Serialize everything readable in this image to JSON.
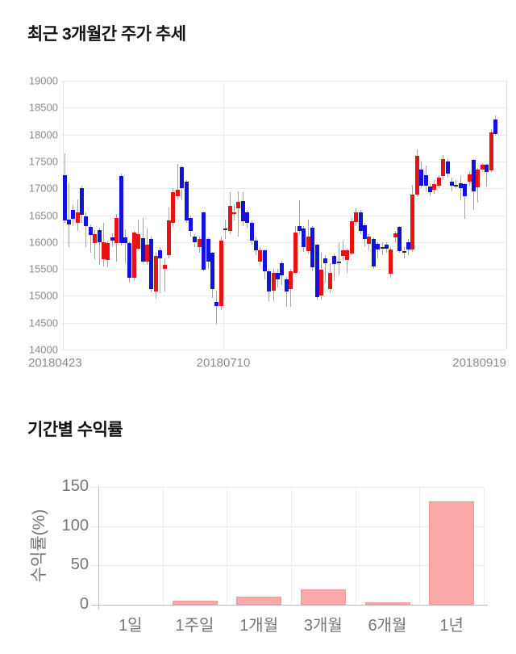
{
  "page": {
    "background": "#ffffff"
  },
  "chart_data": [
    {
      "type": "candlestick",
      "title": "최근 3개월간 주가 추세",
      "ylim": [
        14000,
        19000
      ],
      "y_ticks": [
        19000,
        18500,
        18000,
        17500,
        17000,
        16500,
        16000,
        15500,
        15000,
        14500,
        14000
      ],
      "x_tick_labels": [
        "20180423",
        "20180710",
        "20180919"
      ],
      "grid": true,
      "up_color": "#e81212",
      "down_color": "#1212e0",
      "doji_color": "#333333",
      "wick_color": "#a6a6a6",
      "candles_format": [
        "open",
        "close",
        "high",
        "low"
      ],
      "candles": [
        [
          17250,
          16400,
          17650,
          16350
        ],
        [
          16420,
          16330,
          17100,
          15900
        ],
        [
          16600,
          16430,
          16700,
          16300
        ],
        [
          16350,
          16550,
          16800,
          16200
        ],
        [
          17000,
          16500,
          17050,
          16350
        ],
        [
          16480,
          16300,
          16550,
          15900
        ],
        [
          16280,
          16130,
          16330,
          15800
        ],
        [
          15980,
          16150,
          16220,
          15680
        ],
        [
          16220,
          16000,
          16270,
          15580
        ],
        [
          15680,
          16000,
          16350,
          15550
        ],
        [
          15660,
          15980,
          16020,
          15530
        ],
        [
          16080,
          16030,
          16160,
          15900
        ],
        [
          15980,
          16450,
          16520,
          15640
        ],
        [
          17230,
          15980,
          17280,
          15930
        ],
        [
          16080,
          15980,
          16230,
          15600
        ],
        [
          15980,
          15330,
          16010,
          15250
        ],
        [
          15330,
          16170,
          16200,
          15270
        ],
        [
          15880,
          16150,
          16420,
          15850
        ],
        [
          16070,
          15630,
          16450,
          15600
        ],
        [
          15630,
          15950,
          16250,
          15570
        ],
        [
          16050,
          15130,
          16100,
          15070
        ],
        [
          15080,
          15745,
          15800,
          14950
        ],
        [
          15850,
          15700,
          15900,
          15050
        ],
        [
          15500,
          15570,
          15700,
          15080
        ],
        [
          15750,
          16400,
          16650,
          15700
        ],
        [
          16350,
          16930,
          17000,
          16280
        ],
        [
          16850,
          16980,
          17450,
          16800
        ],
        [
          17400,
          17000,
          17420,
          16780
        ],
        [
          17125,
          16400,
          17150,
          16350
        ],
        [
          16450,
          16200,
          16500,
          16100
        ],
        [
          16100,
          16000,
          16150,
          15900
        ],
        [
          15900,
          16050,
          16100,
          15800
        ],
        [
          16550,
          15480,
          16570,
          15450
        ],
        [
          16050,
          15630,
          16080,
          15500
        ],
        [
          15800,
          15130,
          15820,
          14960
        ],
        [
          14885,
          14810,
          15100,
          14460
        ],
        [
          14810,
          16030,
          16100,
          14735
        ],
        [
          16250,
          16250,
          16420,
          16050
        ],
        [
          16200,
          16680,
          16930,
          16150
        ],
        [
          16530,
          16560,
          16700,
          16400
        ],
        [
          16630,
          16750,
          16950,
          16100
        ],
        [
          16760,
          16380,
          16930,
          16300
        ],
        [
          16550,
          16350,
          16600,
          16250
        ],
        [
          16350,
          16030,
          16400,
          15950
        ],
        [
          16030,
          15840,
          16100,
          15750
        ],
        [
          15640,
          15840,
          15900,
          15560
        ],
        [
          15840,
          15450,
          15860,
          15300
        ],
        [
          15450,
          15080,
          15500,
          14900
        ],
        [
          15090,
          15420,
          15500,
          14900
        ],
        [
          15420,
          15300,
          15500,
          15150
        ],
        [
          15600,
          15380,
          15650,
          15200
        ],
        [
          15300,
          15080,
          15350,
          14800
        ],
        [
          15130,
          15450,
          15500,
          14800
        ],
        [
          15430,
          16170,
          16300,
          15400
        ],
        [
          16300,
          16210,
          16780,
          16150
        ],
        [
          16250,
          15900,
          16300,
          15820
        ],
        [
          15830,
          16100,
          16420,
          15780
        ],
        [
          16270,
          15530,
          16300,
          15450
        ],
        [
          15950,
          14980,
          15970,
          14925
        ],
        [
          15000,
          15480,
          15800,
          14925
        ],
        [
          15700,
          15600,
          15750,
          15250
        ],
        [
          15130,
          15420,
          15600,
          15050
        ],
        [
          15740,
          15590,
          15780,
          15275
        ],
        [
          15630,
          15630,
          15975,
          15375
        ],
        [
          15740,
          15840,
          16025,
          15650
        ],
        [
          15665,
          15840,
          15880,
          15425
        ],
        [
          15790,
          16390,
          16450,
          15750
        ],
        [
          16370,
          16560,
          16625,
          16300
        ],
        [
          16560,
          16210,
          16600,
          16150
        ],
        [
          16310,
          16060,
          16350,
          15900
        ],
        [
          15960,
          16100,
          16150,
          15850
        ],
        [
          16060,
          15540,
          16080,
          15500
        ],
        [
          15960,
          15860,
          16000,
          15700
        ],
        [
          15900,
          15900,
          16000,
          15750
        ],
        [
          15950,
          15880,
          16000,
          15800
        ],
        [
          15410,
          15860,
          15900,
          15350
        ],
        [
          16085,
          16160,
          16200,
          16000
        ],
        [
          16285,
          15835,
          16300,
          15800
        ],
        [
          15835,
          15835,
          15900,
          15700
        ],
        [
          16000,
          15860,
          16050,
          15750
        ],
        [
          15860,
          16885,
          17060,
          15820
        ],
        [
          16885,
          17600,
          17720,
          16850
        ],
        [
          17350,
          17050,
          17500,
          17000
        ],
        [
          17250,
          17050,
          17430,
          16950
        ],
        [
          17030,
          16930,
          17100,
          16850
        ],
        [
          16980,
          17080,
          17150,
          16900
        ],
        [
          17050,
          17200,
          17250,
          17000
        ],
        [
          17230,
          17550,
          17620,
          17150
        ],
        [
          17500,
          17280,
          17550,
          17200
        ],
        [
          17125,
          17050,
          17200,
          16950
        ],
        [
          17070,
          17070,
          17150,
          17000
        ],
        [
          17100,
          17000,
          17225,
          16780
        ],
        [
          17075,
          16850,
          17100,
          16430
        ],
        [
          17125,
          17260,
          17320,
          17050
        ],
        [
          17530,
          16950,
          17540,
          16600
        ],
        [
          17025,
          17350,
          17380,
          16730
        ],
        [
          17350,
          17440,
          17470,
          17300
        ],
        [
          17440,
          17310,
          17460,
          17030
        ],
        [
          17340,
          18035,
          18100,
          17300
        ],
        [
          18280,
          18010,
          18350,
          17980
        ]
      ]
    },
    {
      "type": "bar",
      "title": "기간별 수익률",
      "ylabel": "수익률(%)",
      "categories": [
        "1일",
        "1주일",
        "1개월",
        "3개월",
        "6개월",
        "1년"
      ],
      "values": [
        0,
        5.5,
        10,
        20,
        3,
        131
      ],
      "ylim": [
        0,
        150
      ],
      "y_ticks": [
        0,
        50,
        100,
        150
      ],
      "grid": true,
      "legend": "none",
      "bar_color": "#faa8a8",
      "bar_border_color": "#ef9b9b"
    }
  ]
}
